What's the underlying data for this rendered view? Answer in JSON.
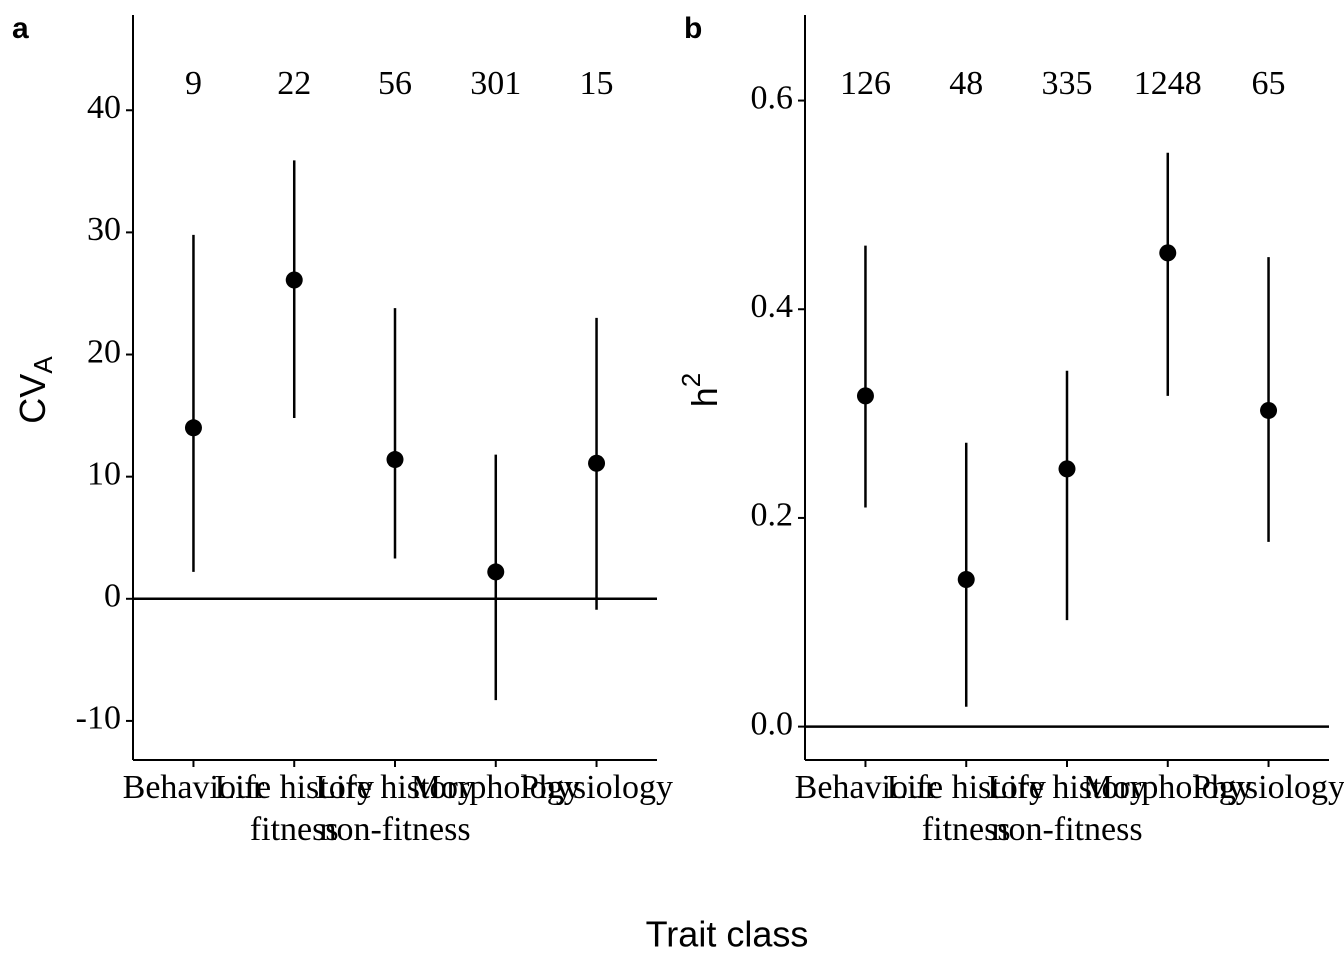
{
  "xlabel": "Trait class",
  "chart_data": [
    {
      "type": "pointrange",
      "panel": "a",
      "ylabel": "CV",
      "ylabel_sub": "A",
      "categories": [
        "Behaviour",
        "Life history\nfitness",
        "Life history\nnon-fitness",
        "Morphology",
        "Physiology"
      ],
      "values": [
        14.0,
        26.1,
        11.4,
        2.2,
        11.1
      ],
      "lower": [
        2.2,
        14.8,
        3.3,
        -8.3,
        -0.9
      ],
      "upper": [
        29.8,
        35.9,
        23.8,
        11.8,
        23.0
      ],
      "n": [
        9,
        22,
        56,
        301,
        15
      ],
      "hline": 0,
      "color": "#000000",
      "ylim": [
        -13.2,
        47.8
      ],
      "yticks": [
        -10,
        0,
        10,
        20,
        30,
        40
      ]
    },
    {
      "type": "pointrange",
      "panel": "b",
      "ylabel": "h",
      "ylabel_sup": "2",
      "categories": [
        "Behaviour",
        "Life history\nfitness",
        "Life history\nnon-fitness",
        "Morphology",
        "Physiology"
      ],
      "values": [
        0.317,
        0.141,
        0.247,
        0.454,
        0.303
      ],
      "lower": [
        0.21,
        0.019,
        0.102,
        0.317,
        0.177
      ],
      "upper": [
        0.461,
        0.272,
        0.341,
        0.55,
        0.45
      ],
      "n": [
        126,
        48,
        335,
        1248,
        65
      ],
      "hline": 0,
      "color": "#000000",
      "ylim": [
        -0.032,
        0.682
      ],
      "yticks": [
        {
          "value": 0,
          "label": "0.0"
        },
        0.2,
        0.4,
        0.6
      ]
    }
  ]
}
